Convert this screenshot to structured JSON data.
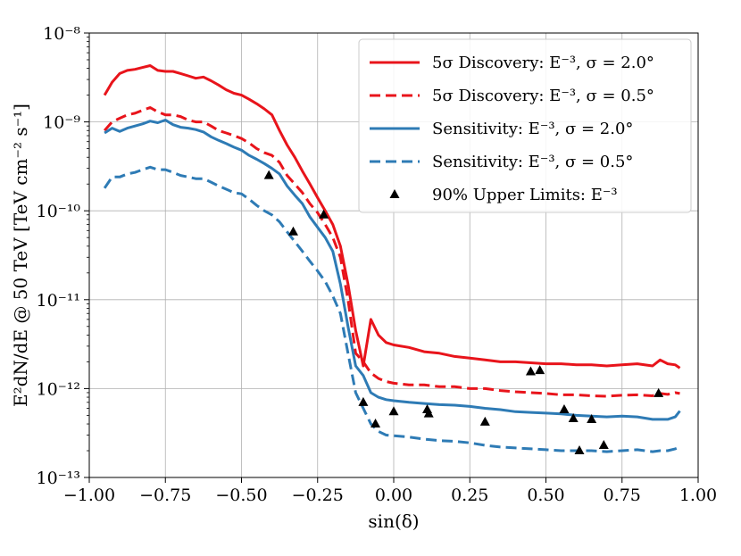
{
  "chart_data": {
    "type": "line",
    "xlabel": "sin(δ)",
    "ylabel": "E²dN/dE @ 50 TeV [TeV cm⁻² s⁻¹]",
    "xlim": [
      -1.0,
      1.0
    ],
    "ylim": [
      1e-13,
      1e-08
    ],
    "yscale": "log",
    "grid": true,
    "legend_position": "top-right",
    "x_ticks": [
      -1.0,
      -0.75,
      -0.5,
      -0.25,
      0.0,
      0.25,
      0.5,
      0.75,
      1.0
    ],
    "x_tick_labels": [
      "−1.00",
      "−0.75",
      "−0.50",
      "−0.25",
      "0.00",
      "0.25",
      "0.50",
      "0.75",
      "1.00"
    ],
    "y_ticks": [
      1e-13,
      1e-12,
      1e-11,
      1e-10,
      1e-09,
      1e-08
    ],
    "y_tick_labels": [
      "10⁻¹³",
      "10⁻¹²",
      "10⁻¹¹",
      "10⁻¹⁰",
      "10⁻⁹",
      "10⁻⁸"
    ],
    "series": [
      {
        "name": "5σ Discovery: E⁻³, σ = 2.0°",
        "color": "#e8141b",
        "style": "solid",
        "x": [
          -0.95,
          -0.925,
          -0.9,
          -0.875,
          -0.85,
          -0.825,
          -0.8,
          -0.775,
          -0.75,
          -0.725,
          -0.7,
          -0.675,
          -0.65,
          -0.625,
          -0.6,
          -0.575,
          -0.55,
          -0.525,
          -0.5,
          -0.475,
          -0.45,
          -0.425,
          -0.4,
          -0.375,
          -0.35,
          -0.325,
          -0.3,
          -0.275,
          -0.25,
          -0.225,
          -0.2,
          -0.175,
          -0.15,
          -0.125,
          -0.1,
          -0.075,
          -0.05,
          -0.025,
          0.0,
          0.05,
          0.1,
          0.15,
          0.2,
          0.25,
          0.3,
          0.35,
          0.4,
          0.45,
          0.5,
          0.55,
          0.6,
          0.65,
          0.7,
          0.75,
          0.8,
          0.85,
          0.875,
          0.9,
          0.925,
          0.94
        ],
        "y": [
          2e-09,
          2.8e-09,
          3.5e-09,
          3.8e-09,
          3.9e-09,
          4.1e-09,
          4.3e-09,
          3.8e-09,
          3.7e-09,
          3.7e-09,
          3.5e-09,
          3.3e-09,
          3.1e-09,
          3.2e-09,
          2.9e-09,
          2.6e-09,
          2.3e-09,
          2.1e-09,
          2e-09,
          1.8e-09,
          1.6e-09,
          1.4e-09,
          1.2e-09,
          8e-10,
          5.5e-10,
          4e-10,
          2.8e-10,
          2e-10,
          1.4e-10,
          1e-10,
          7e-11,
          4e-11,
          1.5e-11,
          4.5e-12,
          1.8e-12,
          6e-12,
          4e-12,
          3.3e-12,
          3.1e-12,
          2.9e-12,
          2.6e-12,
          2.5e-12,
          2.3e-12,
          2.2e-12,
          2.1e-12,
          2e-12,
          2e-12,
          1.95e-12,
          1.9e-12,
          1.9e-12,
          1.85e-12,
          1.85e-12,
          1.8e-12,
          1.85e-12,
          1.9e-12,
          1.8e-12,
          2.1e-12,
          1.9e-12,
          1.85e-12,
          1.7e-12
        ]
      },
      {
        "name": "5σ Discovery: E⁻³, σ = 0.5°",
        "color": "#e8141b",
        "style": "dashed",
        "x": [
          -0.95,
          -0.925,
          -0.9,
          -0.875,
          -0.85,
          -0.825,
          -0.8,
          -0.775,
          -0.75,
          -0.725,
          -0.7,
          -0.675,
          -0.65,
          -0.625,
          -0.6,
          -0.575,
          -0.55,
          -0.525,
          -0.5,
          -0.475,
          -0.45,
          -0.425,
          -0.4,
          -0.375,
          -0.35,
          -0.325,
          -0.3,
          -0.275,
          -0.25,
          -0.225,
          -0.2,
          -0.175,
          -0.15,
          -0.125,
          -0.1,
          -0.075,
          -0.05,
          -0.025,
          0.0,
          0.05,
          0.1,
          0.15,
          0.2,
          0.25,
          0.3,
          0.35,
          0.4,
          0.45,
          0.5,
          0.55,
          0.6,
          0.65,
          0.7,
          0.75,
          0.8,
          0.85,
          0.875,
          0.9,
          0.925,
          0.94
        ],
        "y": [
          8e-10,
          1e-09,
          1.1e-09,
          1.2e-09,
          1.25e-09,
          1.35e-09,
          1.45e-09,
          1.3e-09,
          1.2e-09,
          1.2e-09,
          1.15e-09,
          1.05e-09,
          1e-09,
          1e-09,
          9e-10,
          8e-10,
          7.5e-10,
          7e-10,
          6.5e-10,
          5.8e-10,
          5e-10,
          4.5e-10,
          4.2e-10,
          3.5e-10,
          2.5e-10,
          2e-10,
          1.6e-10,
          1.2e-10,
          9.5e-11,
          7e-11,
          5e-11,
          3e-11,
          1e-11,
          2.5e-12,
          2e-12,
          1.5e-12,
          1.3e-12,
          1.2e-12,
          1.15e-12,
          1.1e-12,
          1.1e-12,
          1.05e-12,
          1.05e-12,
          1e-12,
          1e-12,
          9.5e-13,
          9.2e-13,
          9e-13,
          8.8e-13,
          8.5e-13,
          8.5e-13,
          8.3e-13,
          8.2e-13,
          8.4e-13,
          8.5e-13,
          8.3e-13,
          8.8e-13,
          8.6e-13,
          9e-13,
          8.8e-13
        ]
      },
      {
        "name": "Sensitivity: E⁻³, σ = 2.0°",
        "color": "#2e7bb5",
        "style": "solid",
        "x": [
          -0.95,
          -0.925,
          -0.9,
          -0.875,
          -0.85,
          -0.825,
          -0.8,
          -0.775,
          -0.75,
          -0.725,
          -0.7,
          -0.675,
          -0.65,
          -0.625,
          -0.6,
          -0.575,
          -0.55,
          -0.525,
          -0.5,
          -0.475,
          -0.45,
          -0.425,
          -0.4,
          -0.375,
          -0.35,
          -0.325,
          -0.3,
          -0.275,
          -0.25,
          -0.225,
          -0.2,
          -0.175,
          -0.15,
          -0.125,
          -0.1,
          -0.075,
          -0.05,
          -0.025,
          0.0,
          0.05,
          0.1,
          0.15,
          0.2,
          0.25,
          0.3,
          0.35,
          0.4,
          0.45,
          0.5,
          0.55,
          0.6,
          0.65,
          0.7,
          0.75,
          0.8,
          0.85,
          0.875,
          0.9,
          0.925,
          0.94
        ],
        "y": [
          7.5e-10,
          8.5e-10,
          7.8e-10,
          8.5e-10,
          9e-10,
          9.5e-10,
          1.02e-09,
          9.8e-10,
          1.05e-09,
          9.3e-10,
          8.7e-10,
          8.5e-10,
          8.2e-10,
          7.7e-10,
          6.8e-10,
          6.2e-10,
          5.7e-10,
          5.2e-10,
          4.8e-10,
          4.2e-10,
          3.8e-10,
          3.4e-10,
          3e-10,
          2.6e-10,
          1.9e-10,
          1.5e-10,
          1.2e-10,
          8.5e-11,
          6.5e-11,
          5e-11,
          3.5e-11,
          1.5e-11,
          5e-12,
          1.8e-12,
          1.4e-12,
          9e-13,
          8e-13,
          7.5e-13,
          7.3e-13,
          7e-13,
          6.8e-13,
          6.6e-13,
          6.5e-13,
          6.3e-13,
          6e-13,
          5.8e-13,
          5.5e-13,
          5.4e-13,
          5.3e-13,
          5.2e-13,
          5e-13,
          4.9e-13,
          4.8e-13,
          4.9e-13,
          4.8e-13,
          4.5e-13,
          4.5e-13,
          4.5e-13,
          4.8e-13,
          5.6e-13
        ]
      },
      {
        "name": "Sensitivity: E⁻³, σ = 0.5°",
        "color": "#2e7bb5",
        "style": "dashed",
        "x": [
          -0.95,
          -0.925,
          -0.9,
          -0.875,
          -0.85,
          -0.825,
          -0.8,
          -0.775,
          -0.75,
          -0.725,
          -0.7,
          -0.675,
          -0.65,
          -0.625,
          -0.6,
          -0.575,
          -0.55,
          -0.525,
          -0.5,
          -0.475,
          -0.45,
          -0.425,
          -0.4,
          -0.375,
          -0.35,
          -0.325,
          -0.3,
          -0.275,
          -0.25,
          -0.225,
          -0.2,
          -0.175,
          -0.15,
          -0.125,
          -0.1,
          -0.075,
          -0.05,
          -0.025,
          0.0,
          0.05,
          0.1,
          0.15,
          0.2,
          0.25,
          0.3,
          0.35,
          0.4,
          0.45,
          0.5,
          0.55,
          0.6,
          0.65,
          0.7,
          0.75,
          0.8,
          0.85,
          0.875,
          0.9,
          0.925,
          0.94
        ],
        "y": [
          1.8e-10,
          2.4e-10,
          2.4e-10,
          2.6e-10,
          2.7e-10,
          2.9e-10,
          3.1e-10,
          2.9e-10,
          2.9e-10,
          2.7e-10,
          2.5e-10,
          2.4e-10,
          2.3e-10,
          2.3e-10,
          2.1e-10,
          1.9e-10,
          1.75e-10,
          1.6e-10,
          1.55e-10,
          1.35e-10,
          1.15e-10,
          1e-10,
          9e-11,
          7.5e-11,
          5.8e-11,
          4.5e-11,
          3.5e-11,
          2.7e-11,
          2.1e-11,
          1.6e-11,
          1.1e-11,
          7e-12,
          2.5e-12,
          9e-13,
          6e-13,
          4e-13,
          3.3e-13,
          3e-13,
          2.95e-13,
          2.85e-13,
          2.7e-13,
          2.6e-13,
          2.55e-13,
          2.45e-13,
          2.3e-13,
          2.2e-13,
          2.15e-13,
          2.1e-13,
          2.05e-13,
          2e-13,
          2e-13,
          2e-13,
          1.95e-13,
          2e-13,
          2.05e-13,
          1.95e-13,
          2e-13,
          2e-13,
          2.1e-13,
          2.2e-13
        ]
      },
      {
        "name": "90% Upper Limits: E⁻³",
        "color": "#000000",
        "style": "markers",
        "x": [
          -0.41,
          -0.33,
          -0.23,
          -0.1,
          -0.06,
          0.0,
          0.11,
          0.115,
          0.3,
          0.45,
          0.48,
          0.56,
          0.59,
          0.61,
          0.65,
          0.69,
          0.87
        ],
        "y": [
          2.5e-10,
          5.8e-11,
          9e-11,
          7e-13,
          4e-13,
          5.5e-13,
          5.8e-13,
          5.2e-13,
          4.2e-13,
          1.55e-12,
          1.6e-12,
          5.8e-13,
          4.6e-13,
          2e-13,
          4.5e-13,
          2.3e-13,
          8.8e-13
        ]
      }
    ]
  }
}
